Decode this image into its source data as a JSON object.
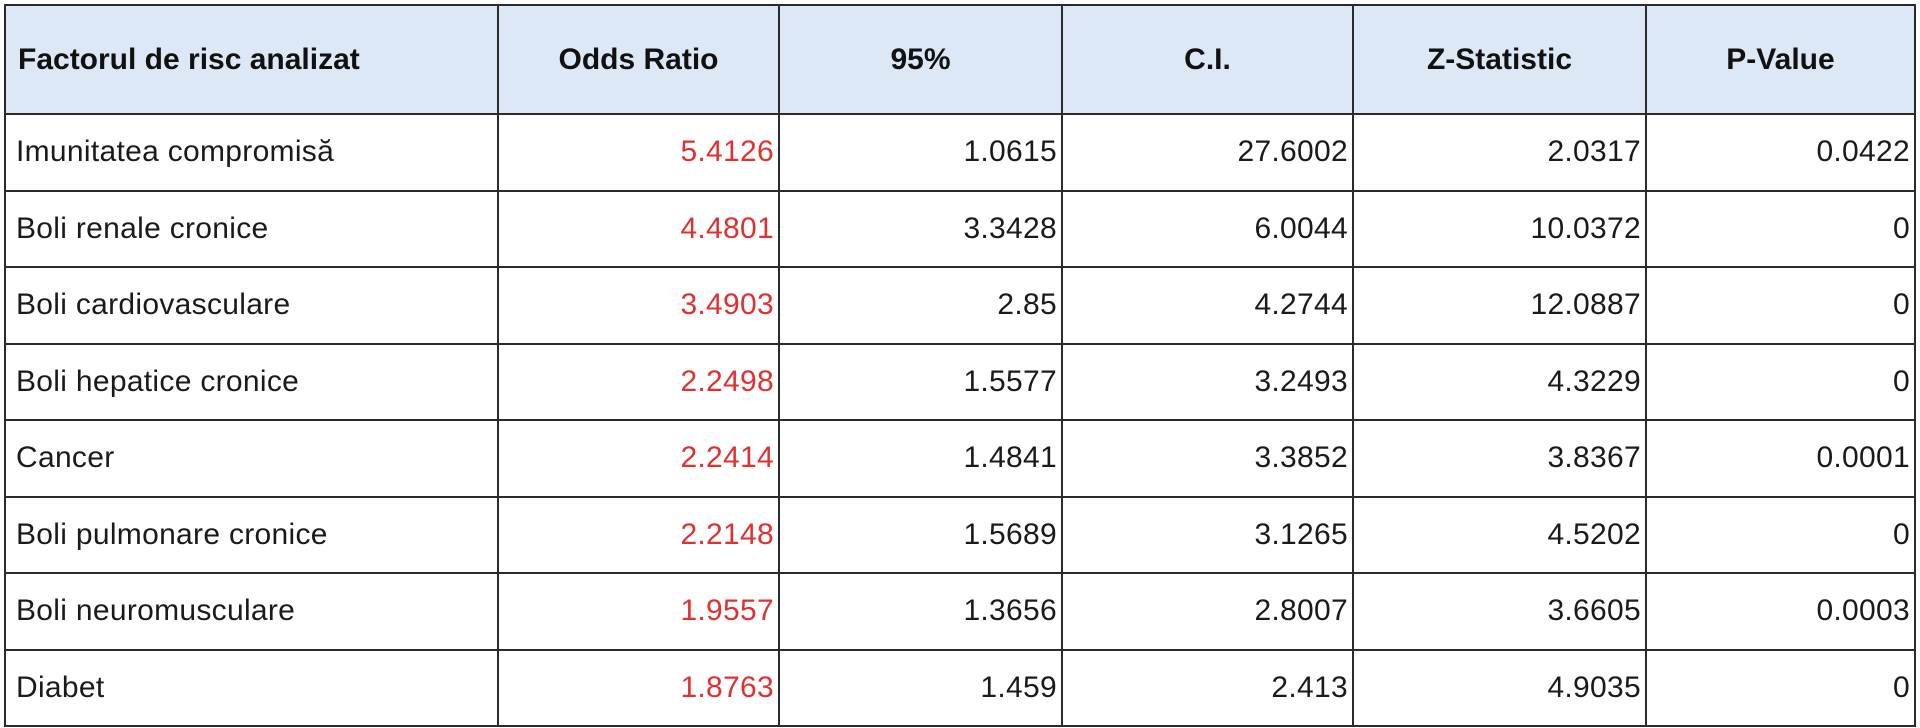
{
  "table": {
    "headers": [
      "Factorul de risc analizat",
      "Odds Ratio",
      "95%",
      "C.I.",
      "Z-Statistic",
      "P-Value"
    ],
    "odds_ratio_color": "#e03030",
    "header_background": "#dde8f6",
    "rows": [
      [
        "Imunitatea compromisă",
        "5.4126",
        "1.0615",
        "27.6002",
        "2.0317",
        "0.0422"
      ],
      [
        "Boli renale cronice",
        "4.4801",
        "3.3428",
        "6.0044",
        "10.0372",
        "0"
      ],
      [
        "Boli cardiovasculare",
        "3.4903",
        "2.85",
        "4.2744",
        "12.0887",
        "0"
      ],
      [
        "Boli hepatice cronice",
        "2.2498",
        "1.5577",
        "3.2493",
        "4.3229",
        "0"
      ],
      [
        "Cancer",
        "2.2414",
        "1.4841",
        "3.3852",
        "3.8367",
        "0.0001"
      ],
      [
        "Boli pulmonare cronice",
        "2.2148",
        "1.5689",
        "3.1265",
        "4.5202",
        "0"
      ],
      [
        "Boli neuromusculare",
        "1.9557",
        "1.3656",
        "2.8007",
        "3.6605",
        "0.0003"
      ],
      [
        "Diabet",
        "1.8763",
        "1.459",
        "2.413",
        "4.9035",
        "0"
      ]
    ]
  }
}
